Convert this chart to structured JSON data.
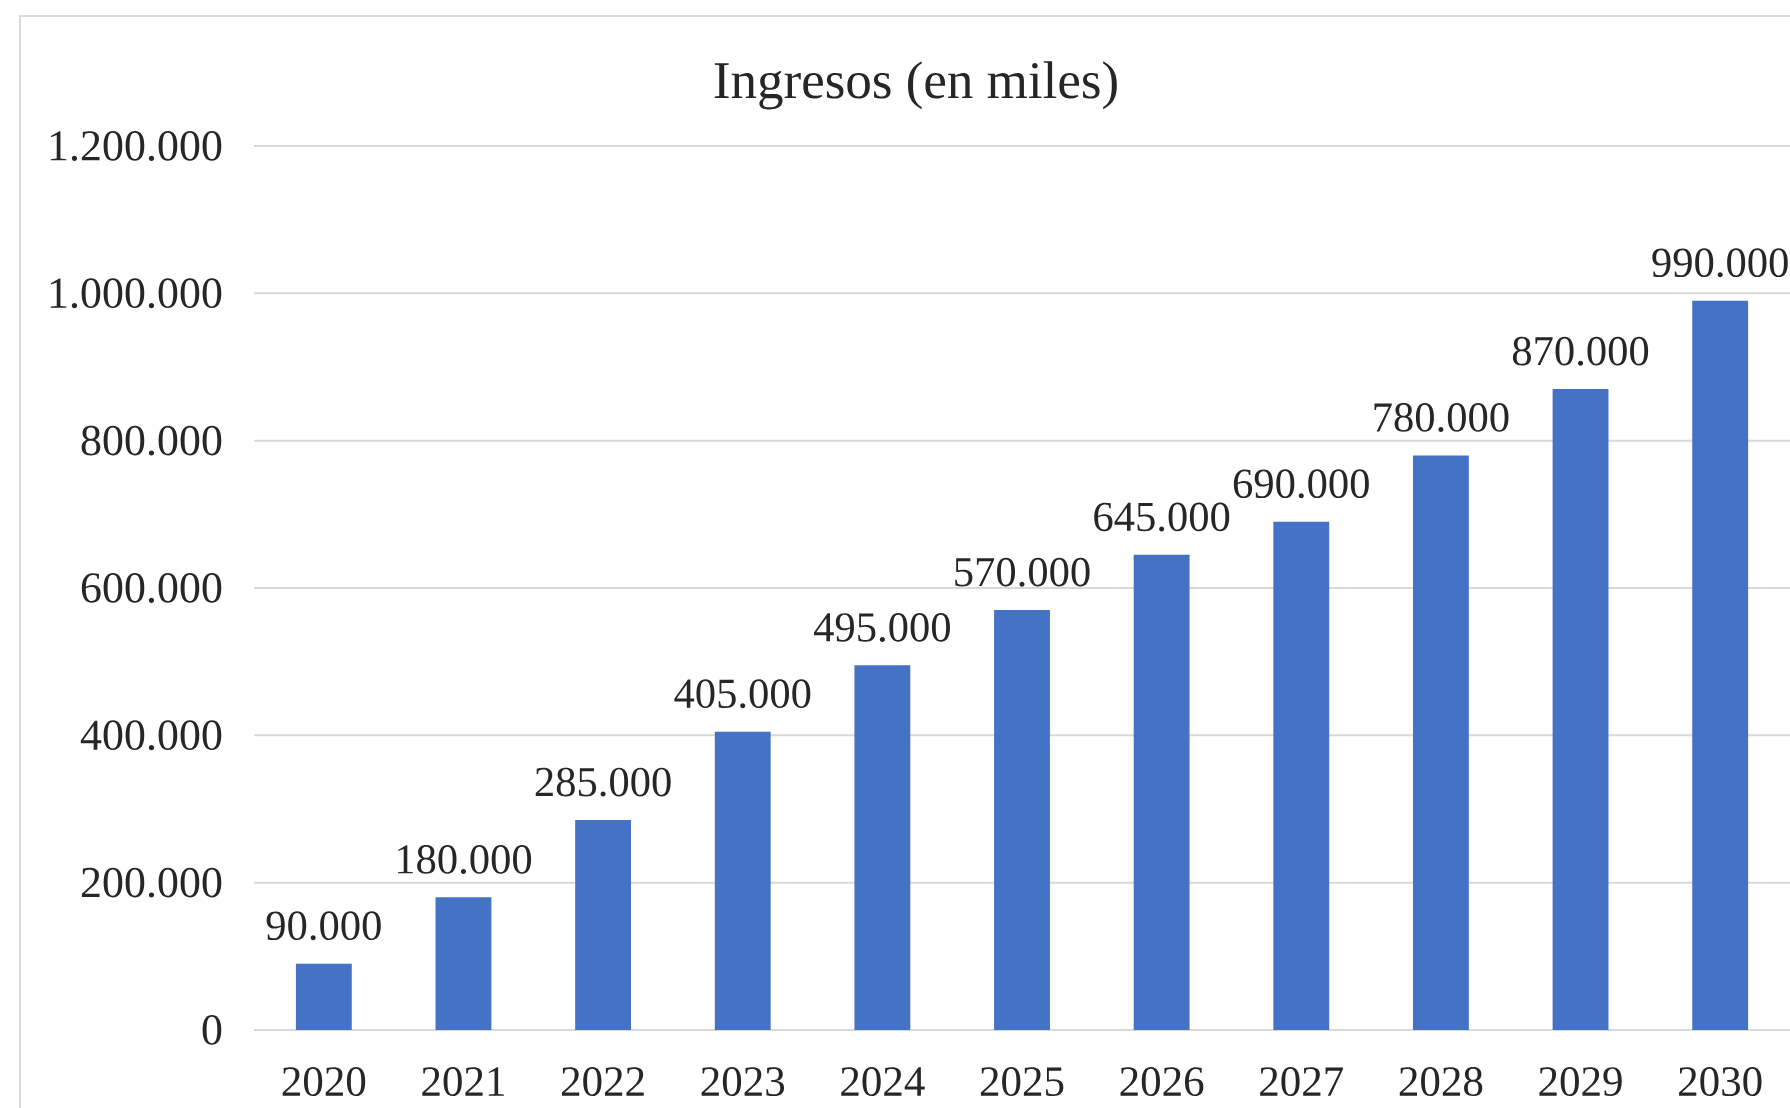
{
  "chart_data": {
    "type": "bar",
    "title": "Ingresos (en miles)",
    "categories": [
      "2020",
      "2021",
      "2022",
      "2023",
      "2024",
      "2025",
      "2026",
      "2027",
      "2028",
      "2029",
      "2030"
    ],
    "values": [
      90000,
      180000,
      285000,
      405000,
      495000,
      570000,
      645000,
      690000,
      780000,
      870000,
      990000
    ],
    "value_labels": [
      "90.000",
      "180.000",
      "285.000",
      "405.000",
      "495.000",
      "570.000",
      "645.000",
      "690.000",
      "780.000",
      "870.000",
      "990.000"
    ],
    "color": "#4472c4",
    "ylim": [
      0,
      1200000
    ],
    "yticks": [
      0,
      {
        "value": 200000,
        "label": "200.000"
      },
      {
        "value": 400000,
        "label": "400.000"
      },
      {
        "value": 600000,
        "label": "600.000"
      },
      {
        "value": 800000,
        "label": "800.000"
      },
      {
        "value": 1000000,
        "label": "1.000.000"
      },
      {
        "value": 1200000,
        "label": "1.200.000"
      }
    ],
    "grid": "y"
  }
}
